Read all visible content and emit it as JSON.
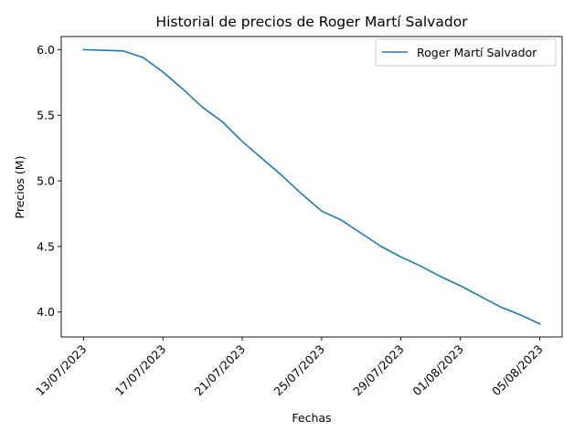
{
  "chart_data": {
    "type": "line",
    "title": "Historial de precios de Roger Martí Salvador",
    "xlabel": "Fechas",
    "ylabel": "Precios (M)",
    "x_tick_labels": [
      "13/07/2023",
      "17/07/2023",
      "21/07/2023",
      "25/07/2023",
      "29/07/2023",
      "01/08/2023",
      "05/08/2023"
    ],
    "x_tick_dates": [
      "2023-07-13",
      "2023-07-17",
      "2023-07-21",
      "2023-07-25",
      "2023-07-29",
      "2023-08-01",
      "2023-08-05"
    ],
    "y_tick_labels": [
      "4.0",
      "4.5",
      "5.0",
      "5.5",
      "6.0"
    ],
    "y_tick_values": [
      4.0,
      4.5,
      5.0,
      5.5,
      6.0
    ],
    "ylim": [
      3.81,
      6.1
    ],
    "xlim": [
      "2023-07-11 21:00",
      "2023-08-06 03:00"
    ],
    "grid": false,
    "legend_position": "top-right",
    "series": [
      {
        "name": "Roger Martí Salvador",
        "color": "#1f77b4",
        "points": [
          {
            "x": "2023-07-13",
            "y": 6.0
          },
          {
            "x": "2023-07-15",
            "y": 5.99
          },
          {
            "x": "2023-07-16",
            "y": 5.94
          },
          {
            "x": "2023-07-17",
            "y": 5.83
          },
          {
            "x": "2023-07-18",
            "y": 5.7
          },
          {
            "x": "2023-07-19",
            "y": 5.56
          },
          {
            "x": "2023-07-20",
            "y": 5.45
          },
          {
            "x": "2023-07-21",
            "y": 5.3
          },
          {
            "x": "2023-07-22",
            "y": 5.17
          },
          {
            "x": "2023-07-23",
            "y": 5.04
          },
          {
            "x": "2023-07-24",
            "y": 4.9
          },
          {
            "x": "2023-07-25",
            "y": 4.77
          },
          {
            "x": "2023-07-26",
            "y": 4.7
          },
          {
            "x": "2023-07-27",
            "y": 4.6
          },
          {
            "x": "2023-07-28",
            "y": 4.5
          },
          {
            "x": "2023-07-29",
            "y": 4.42
          },
          {
            "x": "2023-07-30",
            "y": 4.35
          },
          {
            "x": "2023-07-31",
            "y": 4.27
          },
          {
            "x": "2023-08-01",
            "y": 4.2
          },
          {
            "x": "2023-08-02",
            "y": 4.12
          },
          {
            "x": "2023-08-03",
            "y": 4.04
          },
          {
            "x": "2023-08-04",
            "y": 3.98
          },
          {
            "x": "2023-08-05",
            "y": 3.91
          }
        ]
      }
    ]
  }
}
